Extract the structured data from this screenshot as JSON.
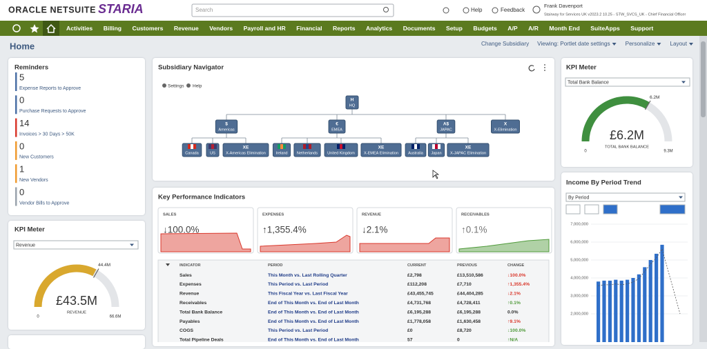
{
  "header": {
    "brand": "ORACLE NETSUITE",
    "company_logo": "STARIA",
    "search_placeholder": "Search",
    "help": "Help",
    "feedback": "Feedback",
    "user_name": "Frank Davenport",
    "user_role": "Stairway for Services UK v2023.2 10.25 - STW_SVCS_UK - Chief Financial Officer"
  },
  "nav": [
    "Activities",
    "Billing",
    "Customers",
    "Revenue",
    "Vendors",
    "Payroll and HR",
    "Financial",
    "Reports",
    "Analytics",
    "Documents",
    "Setup",
    "Budgets",
    "A/P",
    "A/R",
    "Month End",
    "SuiteApps",
    "Support"
  ],
  "page": {
    "title": "Home",
    "actions": [
      "Change Subsidiary",
      "Viewing: Portlet date settings",
      "Personalize",
      "Layout"
    ]
  },
  "reminders": {
    "title": "Reminders",
    "items": [
      {
        "count": 5,
        "label": "Expense Reports to Approve",
        "color": "#4a6fa5"
      },
      {
        "count": 0,
        "label": "Purchase Requests to Approve",
        "color": "#4a6fa5"
      },
      {
        "count": 14,
        "label": "Invoices > 30 Days > 50K",
        "color": "#d9372b"
      },
      {
        "count": 0,
        "label": "New Customers",
        "color": "#ef9a2f"
      },
      {
        "count": 1,
        "label": "New Vendors",
        "color": "#ef9a2f"
      },
      {
        "count": 0,
        "label": "Vendor Bills to Approve",
        "color": "#9aa3ad"
      }
    ]
  },
  "kpi_meter_left": {
    "title": "KPI Meter",
    "dropdown": "Revenue",
    "color": "#d9a82e",
    "value": 43.5,
    "value_label": "£43.5M",
    "caption": "REVENUE",
    "min": 0,
    "max": 66.6,
    "max_label": "66.6M",
    "target": 44.4,
    "target_label": "44.4M"
  },
  "kpi_meter_right": {
    "title": "KPI Meter",
    "dropdown": "Total Bank Balance",
    "color": "#3f8f3f",
    "value": 6.2,
    "value_label": "£6.2M",
    "caption": "TOTAL BANK BALANCE",
    "min": 0,
    "max": 9.3,
    "max_label": "9.3M",
    "target": 6.2,
    "target_label": "6.2M"
  },
  "subsidiary_navigator": {
    "title": "Subsidiary Navigator",
    "settings": "Settings",
    "help": "Help",
    "root": {
      "code": "H",
      "label": "HQ",
      "children": [
        {
          "code": "$",
          "label": "Americas",
          "children": [
            {
              "label": "Canada"
            },
            {
              "label": "US"
            },
            {
              "code": "XE",
              "label": "X-Americas Elimination"
            }
          ]
        },
        {
          "code": "€",
          "label": "EMEA",
          "children": [
            {
              "label": "Ireland"
            },
            {
              "label": "Netherlands"
            },
            {
              "label": "United Kingdom"
            },
            {
              "code": "XE",
              "label": "X-EMEA Elimination"
            }
          ]
        },
        {
          "code": "A$",
          "label": "JAPAC",
          "children": [
            {
              "label": "Australia"
            },
            {
              "label": "Japan"
            },
            {
              "code": "XE",
              "label": "X-JAPAC Elimination"
            }
          ]
        },
        {
          "code": "X",
          "label": "X-Elimination"
        }
      ]
    }
  },
  "kpi": {
    "title": "Key Performance Indicators",
    "cards": [
      {
        "label": "SALES",
        "change": "↓100.0%",
        "color": "#d9372b"
      },
      {
        "label": "EXPENSES",
        "change": "↑1,355.4%",
        "color": "#d9372b"
      },
      {
        "label": "REVENUE",
        "change": "↓2.1%",
        "color": "#d9372b"
      },
      {
        "label": "RECEIVABLES",
        "change": "↑0.1%",
        "color": "#4f9a3a"
      }
    ],
    "table": {
      "headers": [
        "INDICATOR",
        "PERIOD",
        "CURRENT",
        "PREVIOUS",
        "CHANGE"
      ],
      "rows": [
        [
          "Sales",
          "This Month vs. Last Rolling Quarter",
          "£2,798",
          "£13,510,586",
          "↓100.0%"
        ],
        [
          "Expenses",
          "This Period vs. Last Period",
          "£112,208",
          "£7,710",
          "↑1,355.4%"
        ],
        [
          "Revenue",
          "This Fiscal Year vs. Last Fiscal Year",
          "£43,455,745",
          "£44,404,285",
          "↓2.1%"
        ],
        [
          "Receivables",
          "End of This Month vs. End of Last Month",
          "£4,731,768",
          "£4,728,411",
          "↑0.1%"
        ],
        [
          "Total Bank Balance",
          "End of This Month vs. End of Last Month",
          "£6,195,288",
          "£6,195,288",
          "0.0%"
        ],
        [
          "Payables",
          "End of This Month vs. End of Last Month",
          "£1,778,058",
          "£1,630,458",
          "↑9.1%"
        ],
        [
          "COGS",
          "This Period vs. Last Period",
          "£0",
          "£8,720",
          "↓100.0%"
        ],
        [
          "Total Pipeline Deals",
          "End of This Month vs. End of Last Month",
          "57",
          "0",
          "↑N/A"
        ]
      ],
      "change_colors": [
        "#d9372b",
        "#d9372b",
        "#d9372b",
        "#4f9a3a",
        "#333333",
        "#d9372b",
        "#4f9a3a",
        "#4f9a3a"
      ]
    }
  },
  "income_trend": {
    "title": "Income By Period Trend",
    "dropdown": "By Period",
    "color": "#2f6fc9",
    "yticks": [
      {
        "value": 7000000,
        "label": "7,000,000"
      },
      {
        "value": 6000000,
        "label": "6,000,000"
      },
      {
        "value": 5000000,
        "label": "5,000,000"
      },
      {
        "value": 4000000,
        "label": "4,000,000"
      },
      {
        "value": 3000000,
        "label": "3,000,000"
      },
      {
        "value": 2000000,
        "label": "2,000,000"
      }
    ],
    "values": [
      3800000,
      3850000,
      3850000,
      3900000,
      3850000,
      3900000,
      4000000,
      4200000,
      4600000,
      5000000,
      5350000,
      5850000
    ]
  }
}
